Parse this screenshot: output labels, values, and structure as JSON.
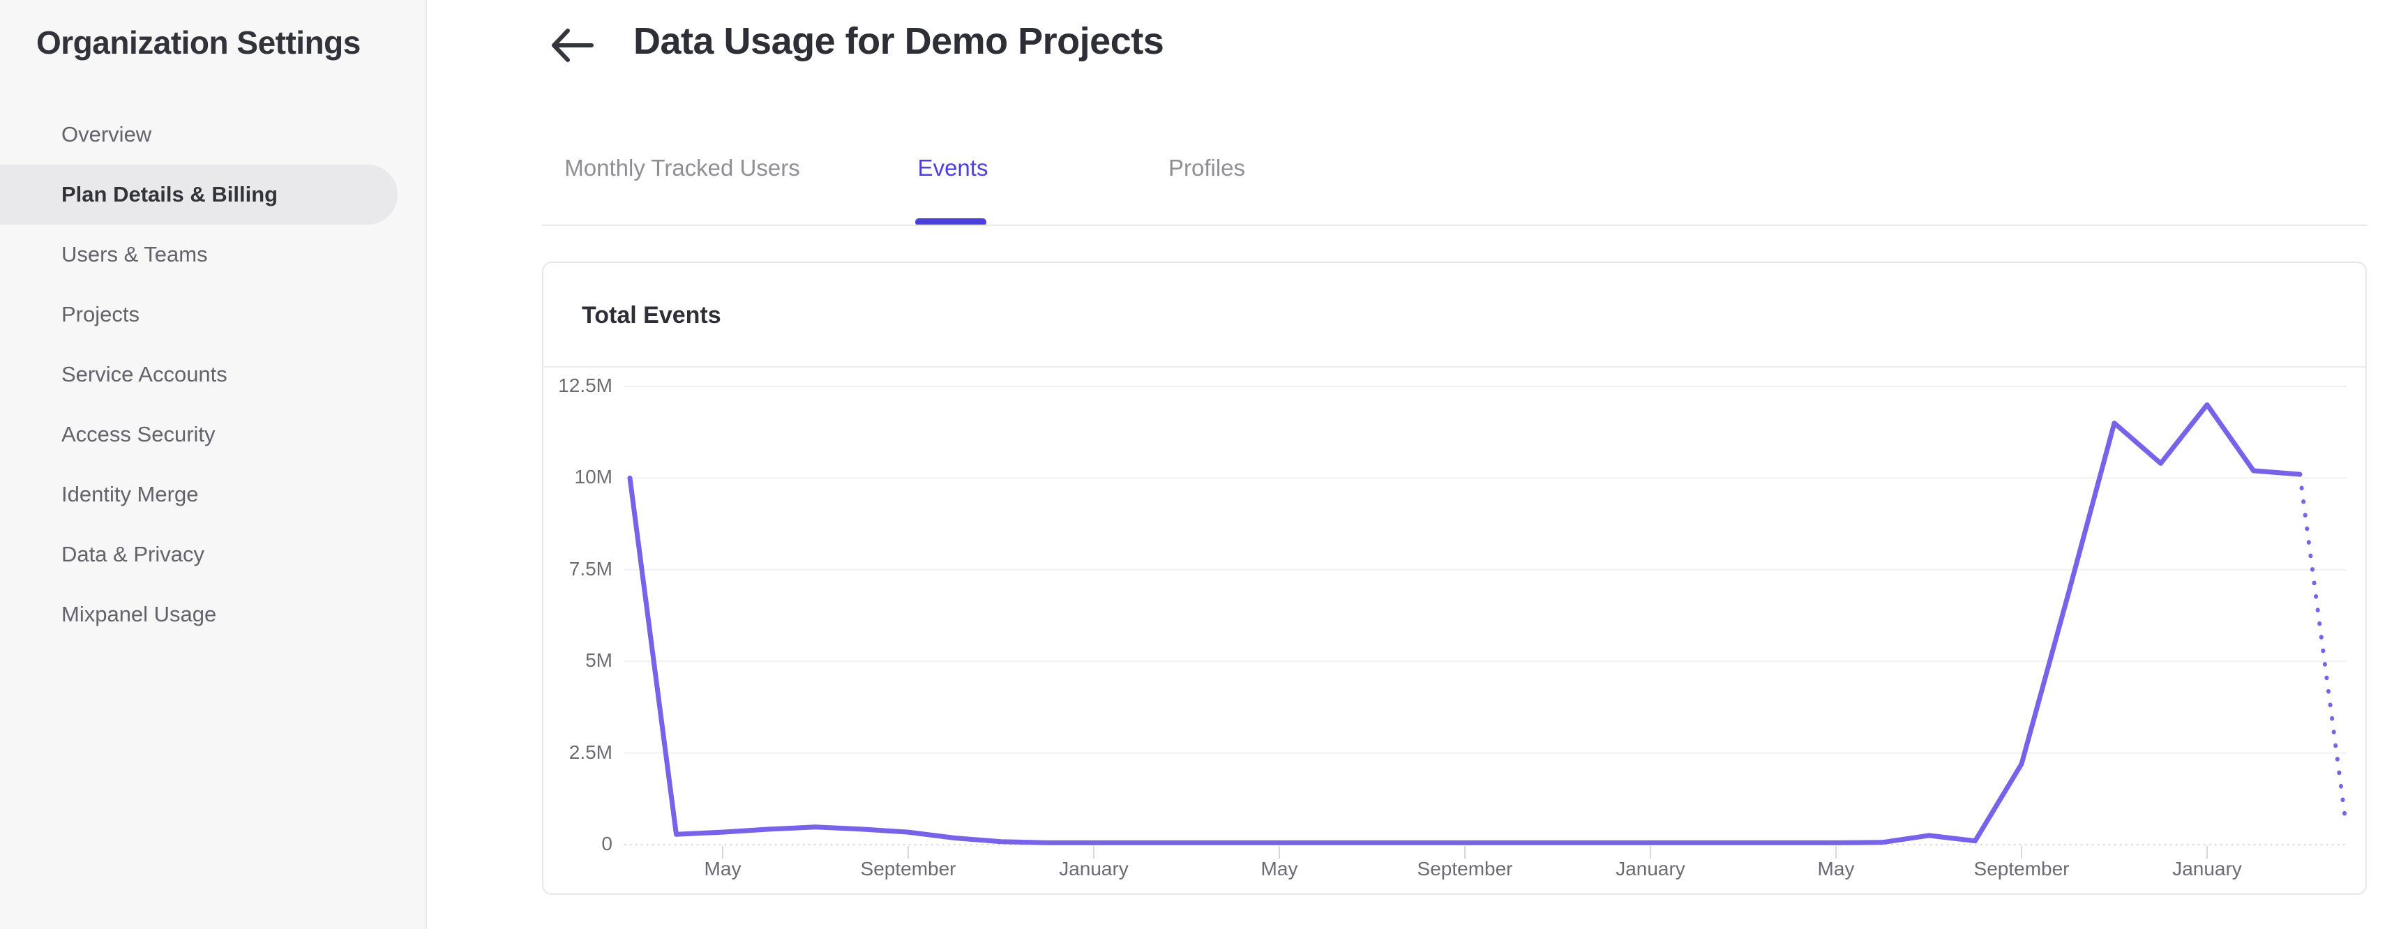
{
  "sidebar": {
    "title": "Organization Settings",
    "items": [
      {
        "label": "Overview",
        "active": false
      },
      {
        "label": "Plan Details & Billing",
        "active": true
      },
      {
        "label": "Users & Teams",
        "active": false
      },
      {
        "label": "Projects",
        "active": false
      },
      {
        "label": "Service Accounts",
        "active": false
      },
      {
        "label": "Access Security",
        "active": false
      },
      {
        "label": "Identity Merge",
        "active": false
      },
      {
        "label": "Data & Privacy",
        "active": false
      },
      {
        "label": "Mixpanel Usage",
        "active": false
      }
    ]
  },
  "header": {
    "title": "Data Usage for Demo Projects",
    "back_icon": "left-arrow"
  },
  "tabs": [
    {
      "label": "Monthly Tracked Users",
      "active": false
    },
    {
      "label": "Events",
      "active": true
    },
    {
      "label": "Profiles",
      "active": false
    }
  ],
  "card": {
    "title": "Total Events"
  },
  "chart_data": {
    "type": "line",
    "title": "Total Events",
    "x_axis": {
      "unit": "month index (0 = first plotted month; ticks every 4 months)",
      "tick_month_indices": [
        2,
        6,
        10,
        14,
        18,
        22,
        26,
        30,
        34
      ],
      "tick_labels": [
        "May",
        "September",
        "January",
        "May",
        "September",
        "January",
        "May",
        "September",
        "January"
      ]
    },
    "y_axis": {
      "tick_labels": [
        "12.5M",
        "10M",
        "7.5M",
        "5M",
        "2.5M",
        "0"
      ],
      "min": 0,
      "max": 12500000
    },
    "grid": true,
    "legend": false,
    "series": [
      {
        "name": "Total Events",
        "style": "solid",
        "color": "#7763ea",
        "points_unit": "millions of events",
        "points": [
          [
            0,
            10.0
          ],
          [
            1,
            0.28
          ],
          [
            2,
            0.34
          ],
          [
            3,
            0.42
          ],
          [
            4,
            0.48
          ],
          [
            5,
            0.42
          ],
          [
            6,
            0.34
          ],
          [
            7,
            0.18
          ],
          [
            8,
            0.08
          ],
          [
            9,
            0.05
          ],
          [
            10,
            0.05
          ],
          [
            11,
            0.05
          ],
          [
            12,
            0.05
          ],
          [
            13,
            0.05
          ],
          [
            14,
            0.05
          ],
          [
            15,
            0.05
          ],
          [
            16,
            0.05
          ],
          [
            17,
            0.05
          ],
          [
            18,
            0.05
          ],
          [
            19,
            0.05
          ],
          [
            20,
            0.05
          ],
          [
            21,
            0.05
          ],
          [
            22,
            0.05
          ],
          [
            23,
            0.05
          ],
          [
            24,
            0.05
          ],
          [
            25,
            0.05
          ],
          [
            26,
            0.05
          ],
          [
            27,
            0.06
          ],
          [
            28,
            0.25
          ],
          [
            29,
            0.1
          ],
          [
            30,
            2.2
          ],
          [
            31,
            6.8
          ],
          [
            32,
            11.5
          ],
          [
            33,
            10.4
          ],
          [
            34,
            12.0
          ],
          [
            35,
            10.2
          ],
          [
            36,
            10.1
          ]
        ]
      },
      {
        "name": "Total Events (incomplete period, dotted)",
        "style": "dotted",
        "color": "#7763ea",
        "points_unit": "millions of events",
        "points": [
          [
            36,
            10.1
          ],
          [
            37,
            0.5
          ]
        ]
      }
    ]
  },
  "colors": {
    "accent_indigo": "#4b3fe0",
    "line_purple": "#7763ea",
    "sidebar_bg": "#f7f7f8",
    "active_item_bg": "#e9e9eb",
    "text_dark": "#2e2e36",
    "text_gray": "#63636c",
    "axis_label_gray": "#6b6b74",
    "gridline": "#f1f1f3",
    "zero_axis_dotted": "#d6d6db",
    "divider": "#e8e8ea"
  }
}
